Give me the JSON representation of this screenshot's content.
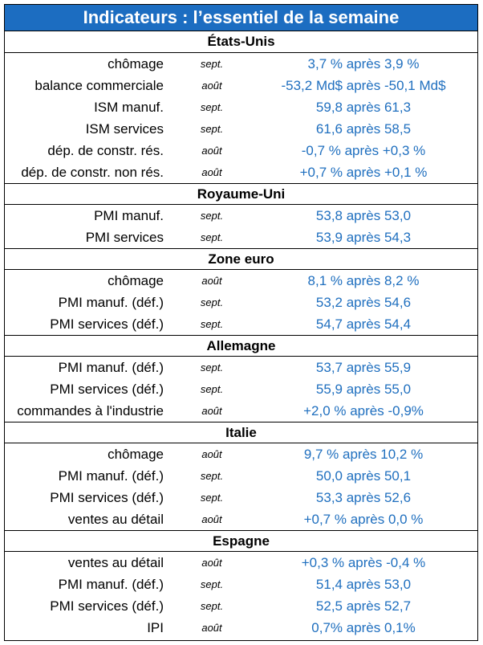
{
  "title": "Indicateurs : l’essentiel de la semaine",
  "sections": [
    {
      "name": "États-Unis",
      "rows": [
        {
          "label": "chômage",
          "month": "sept.",
          "value": "3,7 % après 3,9 %"
        },
        {
          "label": "balance commerciale",
          "month": "août",
          "value": "-53,2 Md$ après -50,1 Md$"
        },
        {
          "label": "ISM manuf.",
          "month": "sept.",
          "value": "59,8 après 61,3"
        },
        {
          "label": "ISM services",
          "month": "sept.",
          "value": "61,6 après 58,5"
        },
        {
          "label": "dép. de constr. rés.",
          "month": "août",
          "value": "-0,7 % après +0,3 %"
        },
        {
          "label": "dép. de constr. non rés.",
          "month": "août",
          "value": "+0,7 % après +0,1 %"
        }
      ]
    },
    {
      "name": "Royaume-Uni",
      "rows": [
        {
          "label": "PMI manuf.",
          "month": "sept.",
          "value": "53,8 après 53,0"
        },
        {
          "label": "PMI services",
          "month": "sept.",
          "value": "53,9 après 54,3"
        }
      ]
    },
    {
      "name": "Zone euro",
      "rows": [
        {
          "label": "chômage",
          "month": "août",
          "value": "8,1 % après 8,2 %"
        },
        {
          "label": "PMI manuf. (déf.)",
          "month": "sept.",
          "value": "53,2 après 54,6"
        },
        {
          "label": "PMI services (déf.)",
          "month": "sept.",
          "value": "54,7 après 54,4"
        }
      ]
    },
    {
      "name": "Allemagne",
      "rows": [
        {
          "label": "PMI manuf. (déf.)",
          "month": "sept.",
          "value": "53,7 après 55,9"
        },
        {
          "label": "PMI services (déf.)",
          "month": "sept.",
          "value": "55,9 après 55,0"
        },
        {
          "label": "commandes à l'industrie",
          "month": "août",
          "value": "+2,0 % après -0,9%"
        }
      ]
    },
    {
      "name": "Italie",
      "rows": [
        {
          "label": "chômage",
          "month": "août",
          "value": "9,7 % après 10,2 %"
        },
        {
          "label": "PMI manuf. (déf.)",
          "month": "sept.",
          "value": "50,0 après 50,1"
        },
        {
          "label": "PMI services (déf.)",
          "month": "sept.",
          "value": "53,3 après 52,6"
        },
        {
          "label": "ventes au détail",
          "month": "août",
          "value": "+0,7 % après 0,0 %"
        }
      ]
    },
    {
      "name": "Espagne",
      "rows": [
        {
          "label": "ventes au détail",
          "month": "août",
          "value": "+0,3 % après -0,4 %"
        },
        {
          "label": "PMI manuf. (déf.)",
          "month": "sept.",
          "value": "51,4 après 53,0"
        },
        {
          "label": "PMI services (déf.)",
          "month": "sept.",
          "value": "52,5 après 52,7"
        },
        {
          "label": "IPI",
          "month": "août",
          "value": "0,7% après 0,1%"
        }
      ]
    }
  ]
}
